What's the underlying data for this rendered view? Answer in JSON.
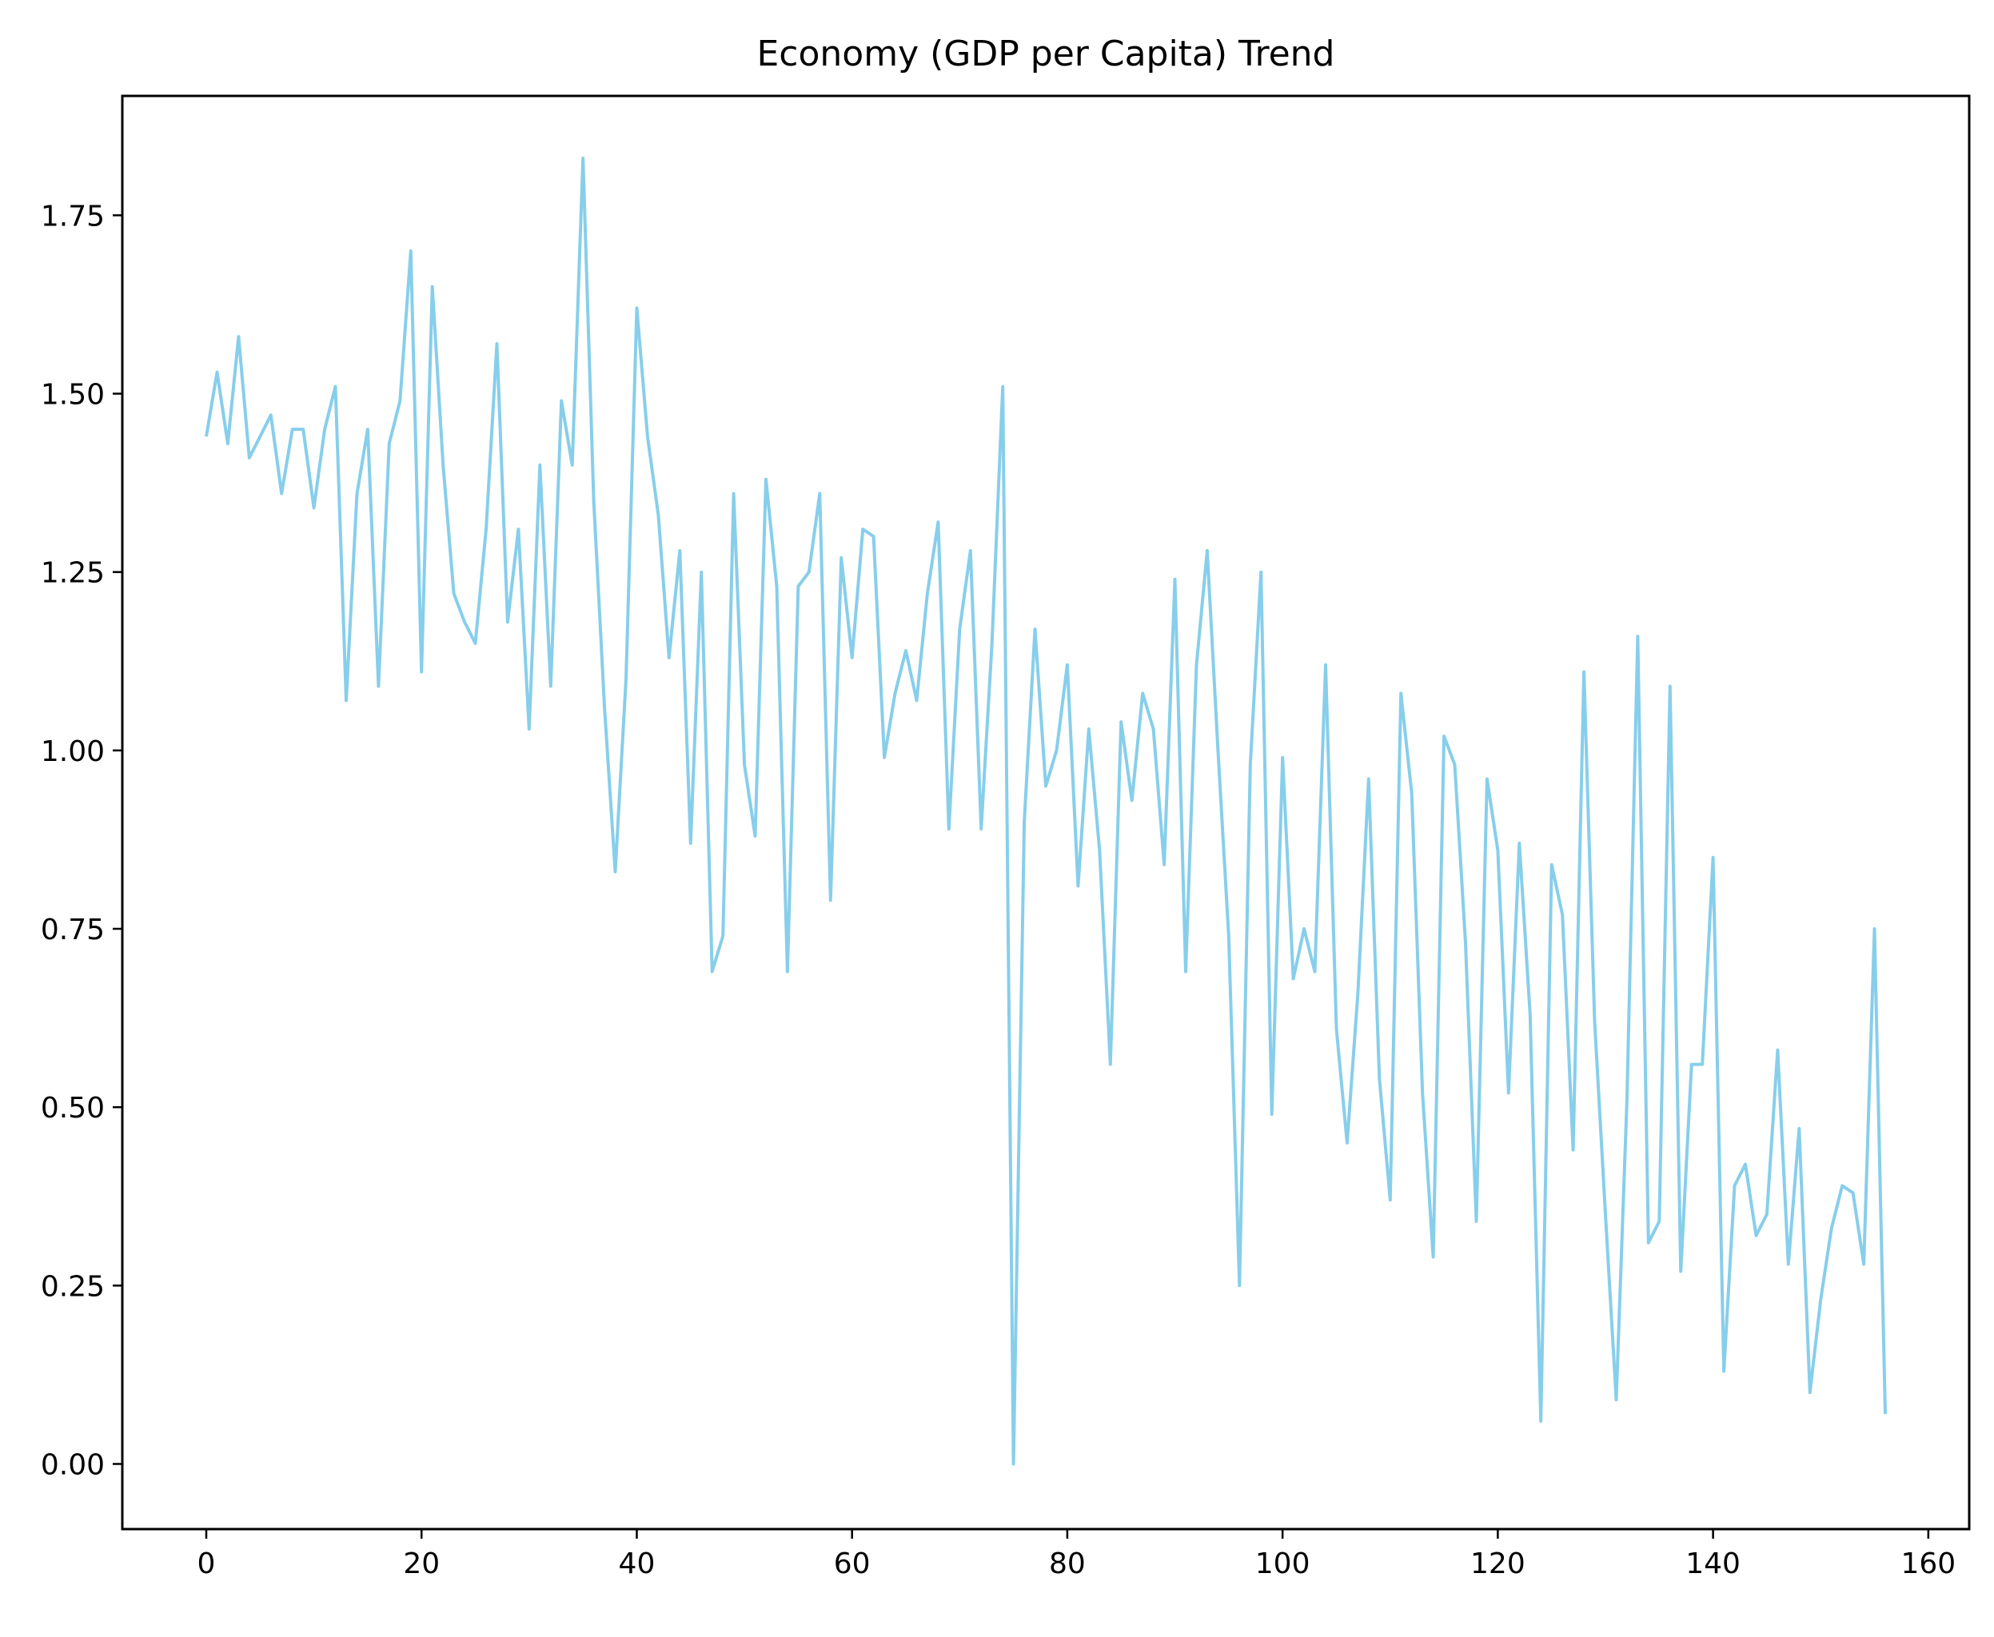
{
  "chart_data": {
    "type": "line",
    "title": "Economy (GDP per Capita) Trend",
    "xlabel": "",
    "ylabel": "",
    "xlim": [
      -7.8,
      163.8
    ],
    "ylim": [
      -0.0913,
      1.9173
    ],
    "xticks": [
      0,
      20,
      40,
      60,
      80,
      100,
      120,
      140,
      160
    ],
    "xtick_labels": [
      "0",
      "20",
      "40",
      "60",
      "80",
      "100",
      "120",
      "140",
      "160"
    ],
    "yticks": [
      0.0,
      0.25,
      0.5,
      0.75,
      1.0,
      1.25,
      1.5,
      1.75
    ],
    "ytick_labels": [
      "0.00",
      "0.25",
      "0.50",
      "0.75",
      "1.00",
      "1.25",
      "1.50",
      "1.75"
    ],
    "grid": false,
    "line_color": "#87CEEB",
    "series": [
      {
        "x": [
          0,
          1,
          2,
          3,
          4,
          5,
          6,
          7,
          8,
          9,
          10,
          11,
          12,
          13,
          14,
          15,
          16,
          17,
          18,
          19,
          20,
          21,
          22,
          23,
          24,
          25,
          26,
          27,
          28,
          29,
          30,
          31,
          32,
          33,
          34,
          35,
          36,
          37,
          38,
          39,
          40,
          41,
          42,
          43,
          44,
          45,
          46,
          47,
          48,
          49,
          50,
          51,
          52,
          53,
          54,
          55,
          56,
          57,
          58,
          59,
          60,
          61,
          62,
          63,
          64,
          65,
          66,
          67,
          68,
          69,
          70,
          71,
          72,
          73,
          74,
          75,
          76,
          77,
          78,
          79,
          80,
          81,
          82,
          83,
          84,
          85,
          86,
          87,
          88,
          89,
          90,
          91,
          92,
          93,
          94,
          95,
          96,
          97,
          98,
          99,
          100,
          101,
          102,
          103,
          104,
          105,
          106,
          107,
          108,
          109,
          110,
          111,
          112,
          113,
          114,
          115,
          116,
          117,
          118,
          119,
          120,
          121,
          122,
          123,
          124,
          125,
          126,
          127,
          128,
          129,
          130,
          131,
          132,
          133,
          134,
          135,
          136,
          137,
          138,
          139,
          140,
          141,
          142,
          143,
          144,
          145,
          146,
          147,
          148,
          149,
          150,
          151,
          152,
          153,
          154,
          155,
          156
        ],
        "values": [
          1.44,
          1.53,
          1.43,
          1.58,
          1.41,
          1.44,
          1.47,
          1.36,
          1.45,
          1.45,
          1.34,
          1.45,
          1.51,
          1.07,
          1.36,
          1.45,
          1.09,
          1.43,
          1.49,
          1.7,
          1.11,
          1.65,
          1.4,
          1.22,
          1.18,
          1.15,
          1.31,
          1.57,
          1.18,
          1.31,
          1.03,
          1.4,
          1.09,
          1.49,
          1.4,
          1.83,
          1.35,
          1.06,
          0.83,
          1.1,
          1.62,
          1.44,
          1.33,
          1.13,
          1.28,
          0.87,
          1.25,
          0.69,
          0.74,
          1.36,
          0.98,
          0.88,
          1.38,
          1.23,
          0.69,
          1.23,
          1.25,
          1.36,
          0.79,
          1.27,
          1.13,
          1.31,
          1.3,
          0.99,
          1.08,
          1.14,
          1.07,
          1.22,
          1.32,
          0.89,
          1.17,
          1.28,
          0.89,
          1.15,
          1.51,
          0.0,
          0.9,
          1.17,
          0.95,
          1.0,
          1.12,
          0.81,
          1.03,
          0.86,
          0.56,
          1.04,
          0.93,
          1.08,
          1.03,
          0.84,
          1.24,
          0.69,
          1.12,
          1.28,
          1.0,
          0.74,
          0.25,
          0.98,
          1.25,
          0.49,
          0.99,
          0.68,
          0.75,
          0.69,
          1.12,
          0.61,
          0.45,
          0.66,
          0.96,
          0.54,
          0.37,
          1.08,
          0.94,
          0.52,
          0.29,
          1.02,
          0.98,
          0.73,
          0.34,
          0.96,
          0.86,
          0.52,
          0.87,
          0.63,
          0.06,
          0.84,
          0.77,
          0.44,
          1.11,
          0.62,
          0.35,
          0.09,
          0.51,
          1.16,
          0.31,
          0.34,
          1.09,
          0.27,
          0.56,
          0.56,
          0.85,
          0.13,
          0.39,
          0.42,
          0.32,
          0.35,
          0.58,
          0.28,
          0.47,
          0.1,
          0.23,
          0.33,
          0.39,
          0.38,
          0.28,
          0.75,
          0.07
        ]
      }
    ]
  }
}
